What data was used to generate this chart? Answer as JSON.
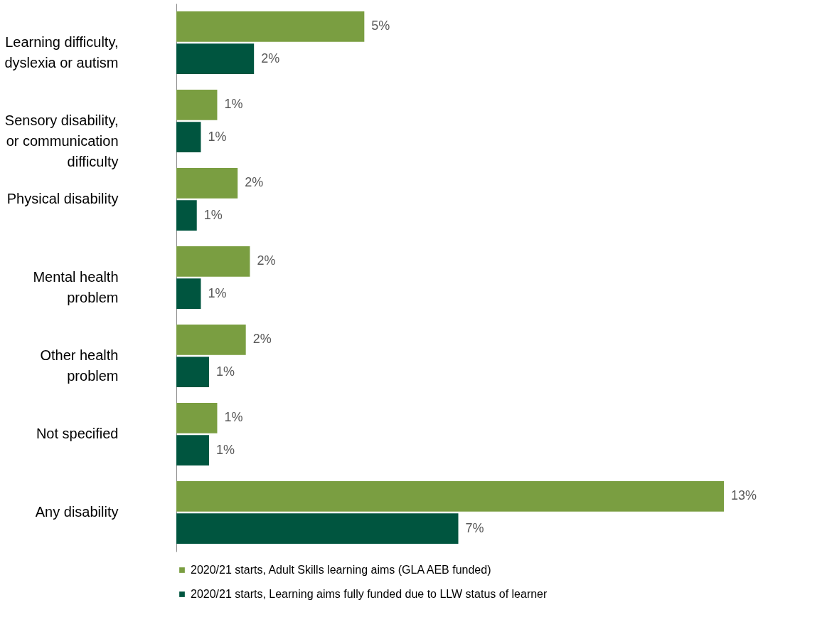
{
  "chart_data": {
    "type": "bar",
    "orientation": "horizontal",
    "categories": [
      "Learning difficulty,\ndyslexia or autism",
      "Sensory disability,\nor communication\ndifficulty",
      "Physical disability",
      "Mental health\nproblem",
      "Other health\nproblem",
      "Not specified",
      "Any disability"
    ],
    "series": [
      {
        "name": "2020/21 starts, Adult Skills learning aims (GLA AEB funded)",
        "color": "#7a9e41",
        "values": [
          4.6,
          1.0,
          1.5,
          1.8,
          1.7,
          1.0,
          13.4
        ],
        "value_labels": [
          "5%",
          "1%",
          "2%",
          "2%",
          "2%",
          "1%",
          "13%"
        ]
      },
      {
        "name": "2020/21 starts, Learning aims fully funded due to LLW status of learner",
        "color": "#00553f",
        "values": [
          1.9,
          0.6,
          0.5,
          0.6,
          0.8,
          0.8,
          6.9
        ],
        "value_labels": [
          "2%",
          "1%",
          "1%",
          "1%",
          "1%",
          "1%",
          "7%"
        ]
      }
    ],
    "legend": "bottom",
    "tick_labels": "y"
  }
}
